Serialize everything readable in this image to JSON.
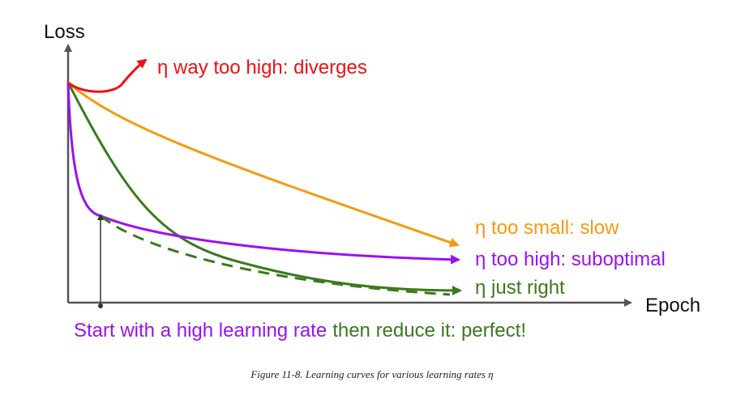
{
  "chart_data": {
    "type": "line",
    "xlabel": "Epoch",
    "ylabel": "Loss",
    "series": [
      {
        "key": "diverges",
        "color": "#ee1111",
        "label": "η way too high: diverges"
      },
      {
        "key": "slow",
        "color": "#f59a12",
        "label": "η too small: slow"
      },
      {
        "key": "suboptimal",
        "color": "#9b11f0",
        "label": "η too high: suboptimal"
      },
      {
        "key": "just_right",
        "color": "#3a7a1c",
        "label": "η just right"
      },
      {
        "key": "schedule",
        "color": "#3a7a1c",
        "style": "dashed"
      }
    ],
    "annotation": {
      "part1": "Start with a high learning rate",
      "part1_color": "#9b11f0",
      "part2": "then reduce it: perfect!",
      "part2_color": "#3a7a1c"
    }
  },
  "caption": "Figure 11-8. Learning curves for various learning rates η"
}
